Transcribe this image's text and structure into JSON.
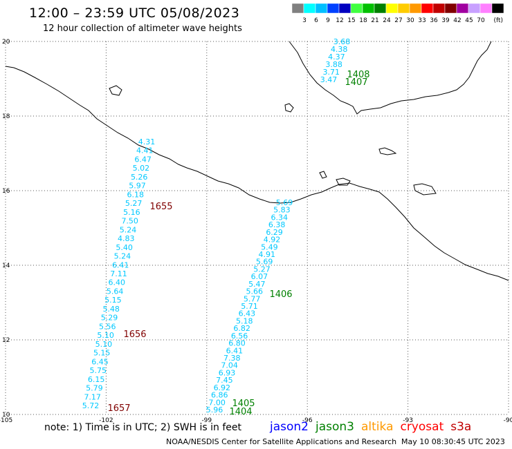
{
  "header": {
    "title": "12:00 – 23:59 UTC 05/08/2023",
    "subtitle": "12 hour collection of altimeter wave heights"
  },
  "colorbar": {
    "unit": "(ft)",
    "bins": [
      {
        "label": "",
        "color": "#808080"
      },
      {
        "label": "3",
        "color": "#00ffff"
      },
      {
        "label": "6",
        "color": "#00bfff"
      },
      {
        "label": "9",
        "color": "#0040ff"
      },
      {
        "label": "12",
        "color": "#0000c0"
      },
      {
        "label": "15",
        "color": "#40ff40"
      },
      {
        "label": "18",
        "color": "#00c000"
      },
      {
        "label": "21",
        "color": "#008000"
      },
      {
        "label": "24",
        "color": "#ffff00"
      },
      {
        "label": "27",
        "color": "#ffcc00"
      },
      {
        "label": "30",
        "color": "#ff9900"
      },
      {
        "label": "33",
        "color": "#ff0000"
      },
      {
        "label": "36",
        "color": "#c00000"
      },
      {
        "label": "39",
        "color": "#800000"
      },
      {
        "label": "42",
        "color": "#a000a0"
      },
      {
        "label": "45",
        "color": "#c8a0ff"
      },
      {
        "label": "70",
        "color": "#ff80ff"
      },
      {
        "label": "",
        "color": "#000000"
      }
    ]
  },
  "axes": {
    "lon_ticks": [
      "-105",
      "-102",
      "-99",
      "-96",
      "-93",
      "-90"
    ],
    "lat_ticks": [
      "10",
      "12",
      "14",
      "16",
      "18",
      "20"
    ],
    "lon_range": [
      -105,
      -90
    ],
    "lat_range": [
      10,
      20
    ],
    "grid": true
  },
  "colors": {
    "wave_text": "#00c8ff",
    "time_jason3": "#008000",
    "time_cryosat": "#800000"
  },
  "tracks": [
    {
      "satellite": "cryosat",
      "values": [
        "4.31",
        "4.41",
        "6.47",
        "5.02",
        "5.26",
        "5.97",
        "6.18",
        "5.27",
        "5.16",
        "7.50",
        "5.24",
        "4.83",
        "5.40",
        "5.24",
        "6.41",
        "7.11",
        "6.40",
        "5.64",
        "5.15",
        "5.48",
        "5.29",
        "5.56",
        "5.10",
        "5.10",
        "5.15",
        "6.45",
        "5.75",
        "6.15",
        "5.79",
        "7.17",
        "5.72"
      ]
    },
    {
      "satellite": "jason3",
      "values": [
        "5.69",
        "5.83",
        "6.34",
        "6.38",
        "6.29",
        "4.92",
        "5.49",
        "4.91",
        "5.69",
        "5.27",
        "6.07",
        "5.47",
        "5.66",
        "5.77",
        "5.71",
        "6.43",
        "5.18",
        "6.82",
        "6.56",
        "6.80",
        "6.41",
        "7.38",
        "7.04",
        "6.93",
        "7.45",
        "6.92",
        "6.86",
        "7.00",
        "5.96"
      ]
    },
    {
      "satellite": "jason3",
      "values": [
        "3.68",
        "4.38",
        "4.37",
        "3.88",
        "3.71",
        "3.47"
      ]
    }
  ],
  "time_labels": [
    {
      "text": "1655",
      "satellite": "cryosat"
    },
    {
      "text": "1656",
      "satellite": "cryosat"
    },
    {
      "text": "1657",
      "satellite": "cryosat"
    },
    {
      "text": "1406",
      "satellite": "jason3"
    },
    {
      "text": "1405",
      "satellite": "jason3"
    },
    {
      "text": "1404",
      "satellite": "jason3"
    },
    {
      "text": "1408",
      "satellite": "jason3"
    },
    {
      "text": "1407",
      "satellite": "jason3"
    }
  ],
  "footer": {
    "note": "note: 1) Time is in UTC; 2) SWH is in feet",
    "legend": [
      {
        "label": "jason2",
        "color": "#0000ff"
      },
      {
        "label": "jason3",
        "color": "#008000"
      },
      {
        "label": "altika",
        "color": "#ff9900"
      },
      {
        "label": "cryosat",
        "color": "#ff0000"
      },
      {
        "label": "s3a",
        "color": "#c00000"
      }
    ],
    "credit": "NOAA/NESDIS Center for Satellite Applications and Research",
    "timestamp": "May 10 08:30:45 UTC 2023"
  }
}
